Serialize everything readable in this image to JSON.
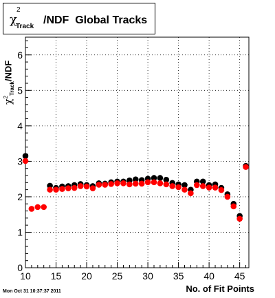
{
  "title": {
    "chi_symbol": "χ",
    "superscript": "2",
    "subscript": "Track",
    "text": "/NDF  Global Tracks"
  },
  "footer_text": "Mon Oct 31 10:37:37 2011",
  "chart_data": {
    "type": "scatter",
    "title": "χ²_Track/NDF  Global Tracks",
    "xlabel": "No. of Fit Points",
    "ylabel": "χ²_Track/NDF",
    "xlim": [
      10,
      46.5
    ],
    "ylim": [
      0,
      6.5
    ],
    "x_ticks": [
      10,
      15,
      20,
      25,
      30,
      35,
      40,
      45
    ],
    "y_ticks": [
      0,
      1,
      2,
      3,
      4,
      5,
      6
    ],
    "grid": true,
    "x": [
      10,
      11,
      12,
      13,
      14,
      15,
      16,
      17,
      18,
      19,
      20,
      21,
      22,
      23,
      24,
      25,
      26,
      27,
      28,
      29,
      30,
      31,
      32,
      33,
      34,
      35,
      36,
      37,
      38,
      39,
      40,
      41,
      42,
      43,
      44,
      45,
      46
    ],
    "series": [
      {
        "color": "#000000",
        "values": [
          3.15,
          null,
          null,
          null,
          2.31,
          2.25,
          2.29,
          2.3,
          2.33,
          2.36,
          2.33,
          2.3,
          2.38,
          2.37,
          2.41,
          2.43,
          2.43,
          2.46,
          2.49,
          2.47,
          2.51,
          2.53,
          2.53,
          2.48,
          2.39,
          2.35,
          2.33,
          2.2,
          2.43,
          2.43,
          2.33,
          2.35,
          2.25,
          2.07,
          1.8,
          1.46,
          2.87
        ]
      },
      {
        "color": "#ff0000",
        "values": [
          3.01,
          1.66,
          1.71,
          1.71,
          2.2,
          2.2,
          2.22,
          2.24,
          2.25,
          2.3,
          2.29,
          2.24,
          2.34,
          2.34,
          2.36,
          2.38,
          2.38,
          2.35,
          2.37,
          2.37,
          2.41,
          2.41,
          2.38,
          2.35,
          2.3,
          2.27,
          2.2,
          2.1,
          2.33,
          2.3,
          2.26,
          2.26,
          2.19,
          2.0,
          1.73,
          1.38,
          2.84
        ]
      }
    ]
  }
}
